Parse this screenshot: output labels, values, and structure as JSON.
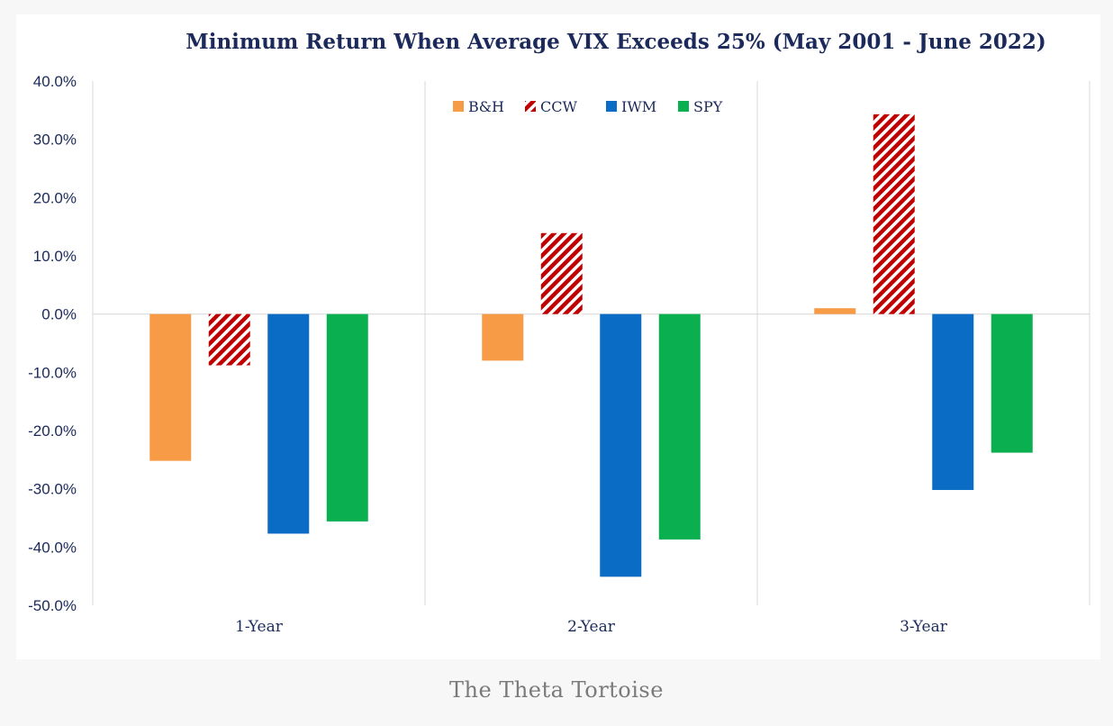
{
  "caption": "The Theta Tortoise",
  "chart_data": {
    "type": "bar",
    "title": "Minimum Return When Average VIX  Exceeds 25% (May 2001 - June 2022)",
    "xlabel": "",
    "ylabel": "",
    "categories": [
      "1-Year",
      "2-Year",
      "3-Year"
    ],
    "ylim": [
      -50,
      40
    ],
    "yticks": [
      40,
      30,
      20,
      10,
      0,
      -10,
      -20,
      -30,
      -40,
      -50
    ],
    "ytick_labels": [
      "40.0%",
      "30.0%",
      "20.0%",
      "10.0%",
      "0.0%",
      "-10.0%",
      "-20.0%",
      "-30.0%",
      "-40.0%",
      "-50.0%"
    ],
    "legend_position": "top-center",
    "grid": false,
    "series": [
      {
        "name": "B&H",
        "color": "#f79b46",
        "pattern": "solid",
        "values": [
          -25.2,
          -8.0,
          1.0
        ]
      },
      {
        "name": "CCW",
        "color": "#c00000",
        "pattern": "hatch",
        "values": [
          -8.8,
          13.9,
          34.3
        ]
      },
      {
        "name": "IWM",
        "color": "#0a6cc4",
        "pattern": "solid",
        "values": [
          -37.7,
          -45.1,
          -30.2
        ]
      },
      {
        "name": "SPY",
        "color": "#0ab050",
        "pattern": "solid",
        "values": [
          -35.6,
          -38.7,
          -23.8
        ]
      }
    ]
  }
}
